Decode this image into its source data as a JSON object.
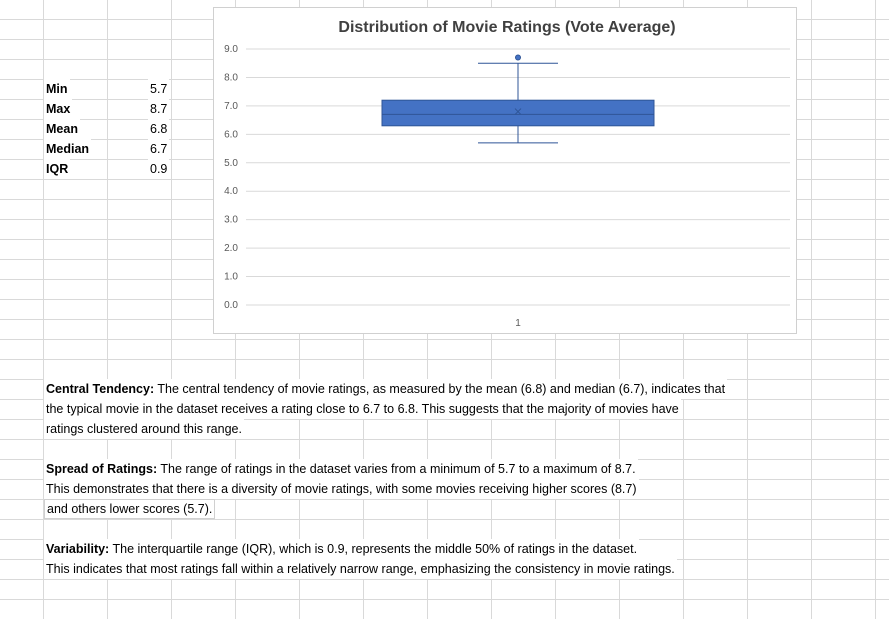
{
  "stats": [
    {
      "label": "Min",
      "value": "5.7"
    },
    {
      "label": "Max",
      "value": "8.7"
    },
    {
      "label": "Mean",
      "value": "6.8"
    },
    {
      "label": "Median",
      "value": "6.7"
    },
    {
      "label": "IQR",
      "value": "0.9"
    }
  ],
  "paragraphs": {
    "central": {
      "heading": "Central Tendency:",
      "line1": " The central tendency of movie ratings, as measured by the mean (6.8) and median (6.7), indicates that",
      "line2": "the typical movie in the dataset receives a rating close to 6.7 to 6.8. This suggests that the majority of movies have",
      "line3": "ratings clustered around this range."
    },
    "spread": {
      "heading": "Spread of Ratings:",
      "line1": " The range of ratings in the dataset varies from a minimum of 5.7 to a maximum of 8.7.",
      "line2": "This demonstrates that there is a diversity of movie ratings, with some movies receiving higher scores (8.7)",
      "line3": " and others lower scores (5.7)."
    },
    "variability": {
      "heading": "Variability:",
      "line1": " The interquartile range (IQR), which is 0.9, represents the middle 50% of ratings in the dataset.",
      "line2": "This indicates that most ratings fall within a relatively narrow range, emphasizing the consistency in movie ratings."
    }
  },
  "chart_data": {
    "type": "box",
    "title": "Distribution of Movie Ratings (Vote Average)",
    "categories": [
      "1"
    ],
    "ylim": [
      0,
      9
    ],
    "yticks": [
      "0.0",
      "1.0",
      "2.0",
      "3.0",
      "4.0",
      "5.0",
      "6.0",
      "7.0",
      "8.0",
      "9.0"
    ],
    "box": {
      "min": 5.7,
      "q1": 6.3,
      "median": 6.7,
      "q3": 7.2,
      "upper_whisker": 8.5,
      "mean": 6.8,
      "outliers": [
        8.7
      ]
    },
    "grid": true,
    "colors": {
      "box_fill": "#4472c4",
      "box_stroke": "#2f5597",
      "gridline": "#d9d9d9"
    }
  }
}
